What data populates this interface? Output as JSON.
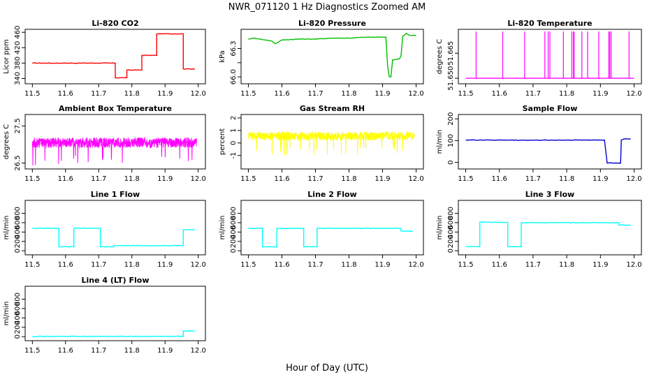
{
  "figure": {
    "title": "NWR_071120  1 Hz Diagnostics Zoomed AM",
    "xlabel": "Hour of Day (UTC)"
  },
  "chart_data": [
    {
      "type": "line",
      "title": "Li-820 CO2",
      "ylabel": "Licor ppm",
      "color": "#ff0000",
      "xlim": [
        11.5,
        12.0
      ],
      "ylim": [
        332,
        462
      ],
      "xticks": [
        11.5,
        11.6,
        11.7,
        11.8,
        11.9,
        12.0
      ],
      "yticks": [
        340,
        380,
        420,
        460
      ],
      "series": [
        {
          "x": [
            11.5,
            11.75,
            11.75,
            11.785,
            11.785,
            11.83,
            11.83,
            11.875,
            11.875,
            11.955,
            11.955,
            11.99
          ],
          "y": [
            380,
            380,
            342,
            342,
            362,
            362,
            400,
            400,
            456,
            456,
            365,
            365
          ]
        }
      ]
    },
    {
      "type": "line",
      "title": "Li-820 Pressure",
      "ylabel": "kPa",
      "color": "#00c000",
      "xlim": [
        11.5,
        12.0
      ],
      "ylim": [
        65.95,
        66.48
      ],
      "xticks": [
        11.5,
        11.6,
        11.7,
        11.8,
        11.9,
        12.0
      ],
      "yticks": [
        66.0,
        66.15,
        66.3
      ],
      "yticklabels": [
        "66.0",
        "",
        "66.3"
      ],
      "series": [
        {
          "x": [
            11.5,
            11.52,
            11.55,
            11.57,
            11.58,
            11.6,
            11.65,
            11.7,
            11.75,
            11.8,
            11.85,
            11.9,
            11.91,
            11.915,
            11.92,
            11.925,
            11.93,
            11.95,
            11.955,
            11.96,
            11.97,
            11.98,
            12.0
          ],
          "y": [
            66.4,
            66.41,
            66.39,
            66.38,
            66.35,
            66.39,
            66.4,
            66.4,
            66.41,
            66.41,
            66.42,
            66.42,
            66.42,
            66.12,
            66.0,
            66.0,
            66.18,
            66.19,
            66.22,
            66.43,
            66.46,
            66.44,
            66.44
          ]
        }
      ]
    },
    {
      "type": "line",
      "title": "Li-820 Temperature",
      "ylabel": "degrees C",
      "color": "#ff00ff",
      "xlim": [
        11.5,
        12.0
      ],
      "ylim": [
        51.648,
        51.678
      ],
      "xticks": [
        11.5,
        11.6,
        11.7,
        11.8,
        11.9,
        12.0
      ],
      "yticks": [
        51.65,
        51.665
      ],
      "yticklabels": [
        "51.650",
        "51.665"
      ],
      "baseline": 51.65,
      "spike_top": 51.678,
      "spikes_x": [
        11.531,
        11.61,
        11.675,
        11.735,
        11.745,
        11.75,
        11.79,
        11.815,
        11.82,
        11.822,
        11.845,
        11.862,
        11.895,
        11.925,
        11.928,
        11.932,
        11.985
      ]
    },
    {
      "type": "line",
      "title": "Ambient Box Temperature",
      "ylabel": "degrees C",
      "color": "#ff00ff",
      "xlim": [
        11.5,
        12.0
      ],
      "ylim": [
        26.4,
        27.75
      ],
      "xticks": [
        11.5,
        11.6,
        11.7,
        11.8,
        11.9,
        12.0
      ],
      "yticks": [
        26.5,
        27.5
      ],
      "center": 27.05,
      "noise": 0.14
    },
    {
      "type": "line",
      "title": "Gas Stream RH",
      "ylabel": "percent",
      "color": "#ffff00",
      "xlim": [
        11.5,
        12.0
      ],
      "ylim": [
        -1.9,
        2.1
      ],
      "xticks": [
        11.5,
        11.6,
        11.7,
        11.8,
        11.9,
        12.0
      ],
      "yticks": [
        -1,
        0,
        1,
        2
      ],
      "center": 0.55,
      "noise": 0.35
    },
    {
      "type": "line",
      "title": "Sample Flow",
      "ylabel": "ml/min",
      "color": "#0000cc",
      "xlim": [
        11.5,
        12.0
      ],
      "ylim": [
        -20,
        210
      ],
      "xticks": [
        11.5,
        11.6,
        11.7,
        11.8,
        11.9,
        12.0
      ],
      "yticks": [
        0,
        100,
        200
      ],
      "series": [
        {
          "x": [
            11.5,
            11.7,
            11.9,
            11.912,
            11.92,
            11.96,
            11.962,
            11.97,
            11.99
          ],
          "y": [
            103,
            102,
            103,
            103,
            -3,
            -3,
            103,
            108,
            108
          ]
        }
      ]
    },
    {
      "type": "line",
      "title": "Line 1 Flow",
      "ylabel": "ml/min",
      "color": "#00ffff",
      "xlim": [
        11.5,
        12.0
      ],
      "ylim": [
        -40,
        1030
      ],
      "xticks": [
        11.5,
        11.6,
        11.7,
        11.8,
        11.9,
        12.0
      ],
      "yticks": [
        0,
        200,
        400,
        600,
        800
      ],
      "series": [
        {
          "x": [
            11.5,
            11.58,
            11.58,
            11.625,
            11.625,
            11.705,
            11.705,
            11.745,
            11.745,
            11.955,
            11.955,
            11.99
          ],
          "y": [
            480,
            480,
            85,
            85,
            480,
            480,
            85,
            85,
            110,
            110,
            450,
            450
          ]
        }
      ]
    },
    {
      "type": "line",
      "title": "Line 2 Flow",
      "ylabel": "ml/min",
      "color": "#00ffff",
      "xlim": [
        11.5,
        12.0
      ],
      "ylim": [
        -40,
        1030
      ],
      "xticks": [
        11.5,
        11.6,
        11.7,
        11.8,
        11.9,
        12.0
      ],
      "yticks": [
        0,
        200,
        400,
        600,
        800
      ],
      "series": [
        {
          "x": [
            11.5,
            11.542,
            11.542,
            11.585,
            11.585,
            11.665,
            11.665,
            11.705,
            11.705,
            11.955,
            11.955,
            11.99
          ],
          "y": [
            480,
            480,
            85,
            85,
            480,
            480,
            85,
            85,
            480,
            480,
            420,
            420
          ]
        }
      ]
    },
    {
      "type": "line",
      "title": "Line 3 Flow",
      "ylabel": "ml/min",
      "color": "#00ffff",
      "xlim": [
        11.5,
        12.0
      ],
      "ylim": [
        -40,
        1030
      ],
      "xticks": [
        11.5,
        11.6,
        11.7,
        11.8,
        11.9,
        12.0
      ],
      "yticks": [
        0,
        200,
        400,
        600,
        800
      ],
      "series": [
        {
          "x": [
            11.5,
            11.542,
            11.542,
            11.625,
            11.625,
            11.665,
            11.665,
            11.955,
            11.955,
            11.99
          ],
          "y": [
            90,
            90,
            610,
            610,
            90,
            90,
            600,
            600,
            550,
            550
          ]
        }
      ]
    },
    {
      "type": "line",
      "title": "Line 4 (LT) Flow",
      "ylabel": "ml/min",
      "color": "#00ffff",
      "xlim": [
        11.5,
        12.0
      ],
      "ylim": [
        -40,
        1030
      ],
      "xticks": [
        11.5,
        11.6,
        11.7,
        11.8,
        11.9,
        12.0
      ],
      "yticks": [
        0,
        200,
        400,
        600,
        800
      ],
      "series": [
        {
          "x": [
            11.5,
            11.955,
            11.955,
            11.99
          ],
          "y": [
            5,
            5,
            120,
            120
          ]
        }
      ]
    }
  ]
}
